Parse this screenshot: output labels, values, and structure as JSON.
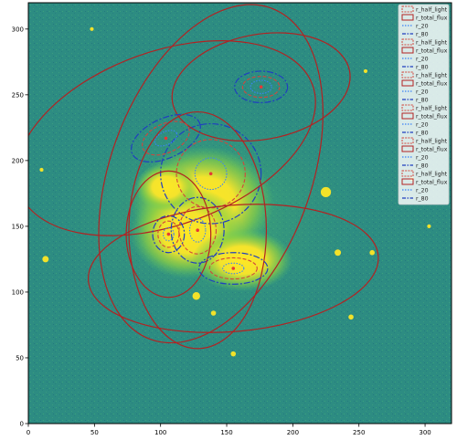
{
  "chart_data": {
    "type": "image",
    "title": "",
    "xlabel": "",
    "ylabel": "",
    "xlim": [
      0,
      320
    ],
    "ylim": [
      0,
      320
    ],
    "x_ticks": [
      0,
      50,
      100,
      150,
      200,
      250,
      300
    ],
    "y_ticks": [
      0,
      50,
      100,
      150,
      200,
      250,
      300
    ],
    "grid": false,
    "legend_position": "top-right",
    "colors": {
      "background": "#2f8f83",
      "bright": "#fde725",
      "half_light": "#d1473d",
      "total_flux": "#b22222",
      "r20": "#3b82f6",
      "r80": "#1f3fbf",
      "center": "#e53935"
    },
    "legend": [
      "r_half_light",
      "r_total_flux",
      "r_20",
      "r_80",
      "r_half_light",
      "r_total_flux",
      "r_20",
      "r_80",
      "r_half_light",
      "r_total_flux",
      "r_20",
      "r_80",
      "r_half_light",
      "r_total_flux",
      "r_20",
      "r_80",
      "r_half_light",
      "r_total_flux",
      "r_20",
      "r_80",
      "r_half_light",
      "r_total_flux",
      "r_20",
      "r_80"
    ],
    "sources": [
      {
        "x": 138,
        "y": 190,
        "r_half_light": [
          26,
          26,
          0
        ],
        "r_total_flux": [
          76,
          134,
          -20
        ],
        "r_20": [
          12,
          12,
          0
        ],
        "r_80": [
          38,
          38,
          0
        ]
      },
      {
        "x": 176,
        "y": 256,
        "r_half_light": [
          14,
          8,
          0
        ],
        "r_total_flux": [
          68,
          40,
          10
        ],
        "r_20": [
          8,
          5,
          0
        ],
        "r_80": [
          20,
          12,
          0
        ]
      },
      {
        "x": 104,
        "y": 217,
        "r_half_light": [
          19,
          11,
          25
        ],
        "r_total_flux": [
          118,
          66,
          20
        ],
        "r_20": [
          9,
          5,
          25
        ],
        "r_80": [
          28,
          15,
          25
        ]
      },
      {
        "x": 128,
        "y": 147,
        "r_half_light": [
          14,
          18,
          0
        ],
        "r_total_flux": [
          52,
          90,
          0
        ],
        "r_20": [
          6,
          9,
          0
        ],
        "r_80": [
          20,
          25,
          0
        ]
      },
      {
        "x": 106,
        "y": 144,
        "r_half_light": [
          8,
          10,
          0
        ],
        "r_total_flux": [
          32,
          48,
          0
        ],
        "r_20": [
          4,
          5,
          0
        ],
        "r_80": [
          12,
          14,
          0
        ]
      },
      {
        "x": 155,
        "y": 118,
        "r_half_light": [
          18,
          8,
          0
        ],
        "r_total_flux": [
          110,
          48,
          5
        ],
        "r_20": [
          8,
          4,
          0
        ],
        "r_80": [
          26,
          12,
          0
        ]
      }
    ],
    "stars": [
      {
        "x": 225,
        "y": 176,
        "r": 4
      },
      {
        "x": 13,
        "y": 125,
        "r": 2.5
      },
      {
        "x": 234,
        "y": 130,
        "r": 2.5
      },
      {
        "x": 127,
        "y": 97,
        "r": 3
      },
      {
        "x": 155,
        "y": 53,
        "r": 2
      },
      {
        "x": 244,
        "y": 81,
        "r": 2
      },
      {
        "x": 290,
        "y": 186,
        "r": 1.5
      },
      {
        "x": 260,
        "y": 130,
        "r": 2
      },
      {
        "x": 10,
        "y": 193,
        "r": 1.5
      },
      {
        "x": 140,
        "y": 84,
        "r": 2
      },
      {
        "x": 303,
        "y": 150,
        "r": 1.5
      },
      {
        "x": 255,
        "y": 268,
        "r": 1.5
      },
      {
        "x": 48,
        "y": 300,
        "r": 1.5
      }
    ]
  }
}
